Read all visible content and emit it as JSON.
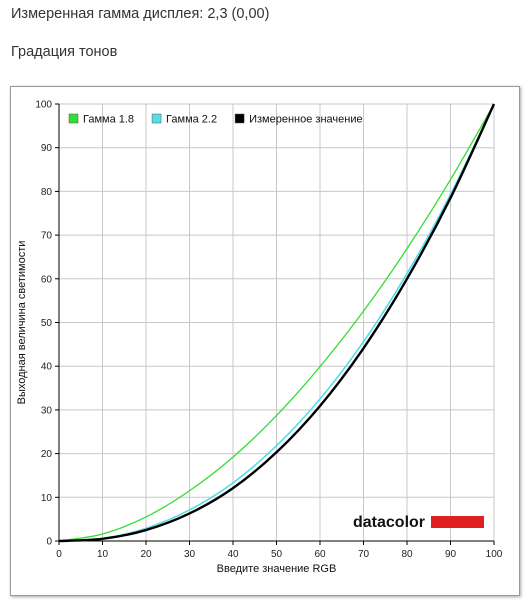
{
  "header": {
    "measured_gamma": "Измеренная гамма дисплея: 2,3 (0,00)",
    "section_title": "Градация тонов"
  },
  "logo": {
    "text": "datacolor",
    "bar_color": "#e02020"
  },
  "chart_data": {
    "type": "line",
    "title": "",
    "xlabel": "Введите значение RGB",
    "ylabel": "Выходная величина светимости",
    "xlim": [
      0,
      100
    ],
    "ylim": [
      0,
      100
    ],
    "xticks": [
      0,
      10,
      20,
      30,
      40,
      50,
      60,
      70,
      80,
      90,
      100
    ],
    "yticks": [
      0,
      10,
      20,
      30,
      40,
      50,
      60,
      70,
      80,
      90,
      100
    ],
    "grid": true,
    "legend_position": "top-left",
    "x": [
      0,
      10,
      20,
      30,
      40,
      50,
      60,
      70,
      80,
      90,
      100
    ],
    "series": [
      {
        "name": "Гамма 1.8",
        "color": "#33dd33",
        "values": [
          0,
          1.6,
          5.5,
          11.5,
          19.2,
          28.7,
          39.9,
          52.6,
          66.9,
          82.7,
          100
        ]
      },
      {
        "name": "Гамма 2.2",
        "color": "#55dde8",
        "values": [
          0,
          0.6,
          2.9,
          7.1,
          13.3,
          21.8,
          32.5,
          45.6,
          61.2,
          79.3,
          100
        ]
      },
      {
        "name": "Измеренное значение",
        "color": "#000000",
        "values": [
          0,
          0.5,
          2.5,
          6.3,
          12.1,
          20.3,
          30.9,
          44.1,
          60.0,
          78.5,
          100
        ]
      }
    ]
  }
}
